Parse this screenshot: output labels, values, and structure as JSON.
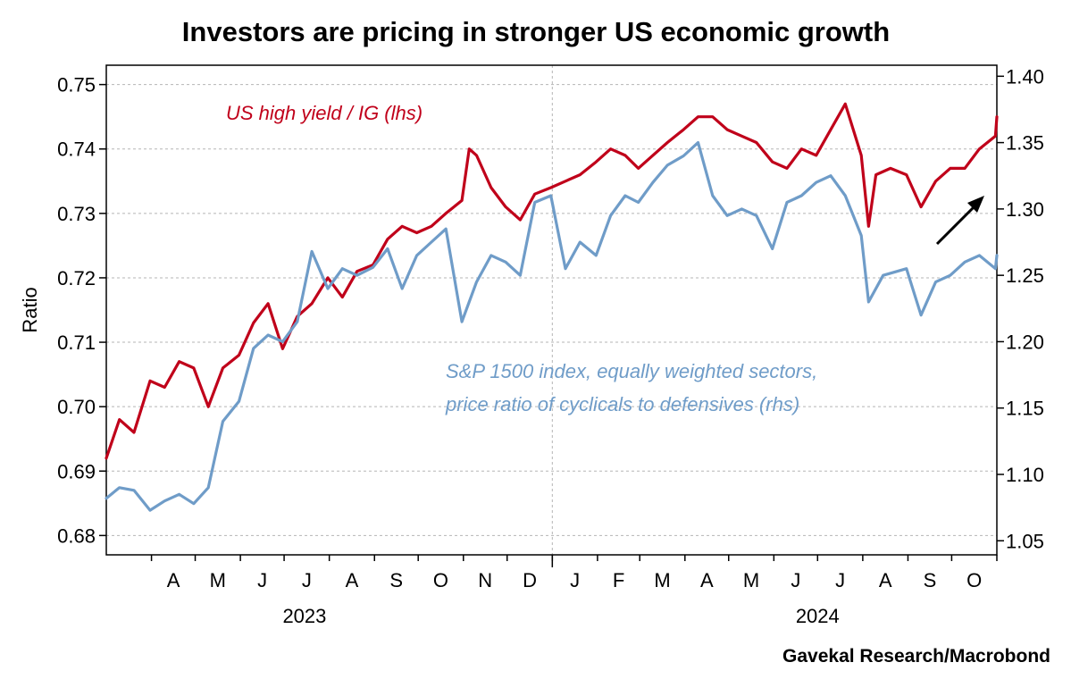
{
  "chart_data": {
    "type": "line",
    "title": "Investors are pricing in stronger US economic growth",
    "ylabel_left": "Ratio",
    "ylabel_right": "",
    "source": "Gavekal Research/Macrobond",
    "x_range": [
      "2023-03-01",
      "2024-11-01"
    ],
    "x_month_labels": [
      "A",
      "M",
      "J",
      "J",
      "A",
      "S",
      "O",
      "N",
      "D",
      "J",
      "F",
      "M",
      "A",
      "M",
      "J",
      "J",
      "A",
      "S",
      "O"
    ],
    "x_year_labels": [
      "2023",
      "2024"
    ],
    "left_axis": {
      "ylim": [
        0.677,
        0.753
      ],
      "ticks": [
        "0.68",
        "0.69",
        "0.70",
        "0.71",
        "0.72",
        "0.73",
        "0.74",
        "0.75"
      ]
    },
    "right_axis": {
      "ylim": [
        1.0394,
        1.4083
      ],
      "ticks": [
        "1.05",
        "1.10",
        "1.15",
        "1.20",
        "1.25",
        "1.30",
        "1.35",
        "1.40"
      ]
    },
    "grid": true,
    "series": [
      {
        "name": "US high yield / IG (lhs)",
        "axis": "left",
        "color": "#c0001a",
        "points": [
          [
            "2023-03-01",
            0.692
          ],
          [
            "2023-03-10",
            0.698
          ],
          [
            "2023-03-20",
            0.696
          ],
          [
            "2023-03-31",
            0.704
          ],
          [
            "2023-04-10",
            0.703
          ],
          [
            "2023-04-20",
            0.707
          ],
          [
            "2023-04-30",
            0.706
          ],
          [
            "2023-05-10",
            0.7
          ],
          [
            "2023-05-20",
            0.706
          ],
          [
            "2023-05-31",
            0.708
          ],
          [
            "2023-06-10",
            0.713
          ],
          [
            "2023-06-20",
            0.716
          ],
          [
            "2023-06-30",
            0.709
          ],
          [
            "2023-07-10",
            0.714
          ],
          [
            "2023-07-20",
            0.716
          ],
          [
            "2023-07-31",
            0.72
          ],
          [
            "2023-08-10",
            0.717
          ],
          [
            "2023-08-20",
            0.721
          ],
          [
            "2023-08-31",
            0.722
          ],
          [
            "2023-09-10",
            0.726
          ],
          [
            "2023-09-20",
            0.728
          ],
          [
            "2023-09-30",
            0.727
          ],
          [
            "2023-10-10",
            0.728
          ],
          [
            "2023-10-20",
            0.73
          ],
          [
            "2023-10-31",
            0.732
          ],
          [
            "2023-11-05",
            0.74
          ],
          [
            "2023-11-10",
            0.739
          ],
          [
            "2023-11-20",
            0.734
          ],
          [
            "2023-11-30",
            0.731
          ],
          [
            "2023-12-10",
            0.729
          ],
          [
            "2023-12-20",
            0.733
          ],
          [
            "2023-12-31",
            0.734
          ],
          [
            "2024-01-10",
            0.735
          ],
          [
            "2024-01-20",
            0.736
          ],
          [
            "2024-01-31",
            0.738
          ],
          [
            "2024-02-10",
            0.74
          ],
          [
            "2024-02-20",
            0.739
          ],
          [
            "2024-02-29",
            0.737
          ],
          [
            "2024-03-10",
            0.739
          ],
          [
            "2024-03-20",
            0.741
          ],
          [
            "2024-03-31",
            0.743
          ],
          [
            "2024-04-10",
            0.745
          ],
          [
            "2024-04-20",
            0.745
          ],
          [
            "2024-04-30",
            0.743
          ],
          [
            "2024-05-10",
            0.742
          ],
          [
            "2024-05-20",
            0.741
          ],
          [
            "2024-05-31",
            0.738
          ],
          [
            "2024-06-10",
            0.737
          ],
          [
            "2024-06-20",
            0.74
          ],
          [
            "2024-06-30",
            0.739
          ],
          [
            "2024-07-10",
            0.743
          ],
          [
            "2024-07-20",
            0.747
          ],
          [
            "2024-07-31",
            0.739
          ],
          [
            "2024-08-05",
            0.728
          ],
          [
            "2024-08-10",
            0.736
          ],
          [
            "2024-08-20",
            0.737
          ],
          [
            "2024-08-31",
            0.736
          ],
          [
            "2024-09-10",
            0.731
          ],
          [
            "2024-09-20",
            0.735
          ],
          [
            "2024-09-30",
            0.737
          ],
          [
            "2024-10-10",
            0.737
          ],
          [
            "2024-10-20",
            0.74
          ],
          [
            "2024-10-31",
            0.742
          ],
          [
            "2024-11-01",
            0.745
          ]
        ]
      },
      {
        "name": "S&P 1500 index, equally weighted sectors, price ratio of cyclicals to defensives (rhs)",
        "axis": "right",
        "color": "#6f9cc8",
        "points": [
          [
            "2023-03-01",
            1.082
          ],
          [
            "2023-03-10",
            1.09
          ],
          [
            "2023-03-20",
            1.088
          ],
          [
            "2023-03-31",
            1.073
          ],
          [
            "2023-04-10",
            1.08
          ],
          [
            "2023-04-20",
            1.085
          ],
          [
            "2023-04-30",
            1.078
          ],
          [
            "2023-05-10",
            1.09
          ],
          [
            "2023-05-20",
            1.14
          ],
          [
            "2023-05-31",
            1.155
          ],
          [
            "2023-06-10",
            1.195
          ],
          [
            "2023-06-20",
            1.205
          ],
          [
            "2023-06-30",
            1.2
          ],
          [
            "2023-07-10",
            1.215
          ],
          [
            "2023-07-20",
            1.268
          ],
          [
            "2023-07-31",
            1.24
          ],
          [
            "2023-08-10",
            1.255
          ],
          [
            "2023-08-20",
            1.25
          ],
          [
            "2023-08-31",
            1.256
          ],
          [
            "2023-09-10",
            1.27
          ],
          [
            "2023-09-20",
            1.24
          ],
          [
            "2023-09-30",
            1.265
          ],
          [
            "2023-10-10",
            1.275
          ],
          [
            "2023-10-20",
            1.285
          ],
          [
            "2023-10-31",
            1.215
          ],
          [
            "2023-11-10",
            1.245
          ],
          [
            "2023-11-20",
            1.265
          ],
          [
            "2023-11-30",
            1.26
          ],
          [
            "2023-12-10",
            1.25
          ],
          [
            "2023-12-20",
            1.305
          ],
          [
            "2023-12-31",
            1.31
          ],
          [
            "2024-01-10",
            1.255
          ],
          [
            "2024-01-20",
            1.275
          ],
          [
            "2024-01-31",
            1.265
          ],
          [
            "2024-02-10",
            1.295
          ],
          [
            "2024-02-20",
            1.31
          ],
          [
            "2024-02-29",
            1.305
          ],
          [
            "2024-03-10",
            1.32
          ],
          [
            "2024-03-20",
            1.333
          ],
          [
            "2024-03-31",
            1.34
          ],
          [
            "2024-04-10",
            1.35
          ],
          [
            "2024-04-20",
            1.31
          ],
          [
            "2024-04-30",
            1.295
          ],
          [
            "2024-05-10",
            1.3
          ],
          [
            "2024-05-20",
            1.295
          ],
          [
            "2024-05-31",
            1.27
          ],
          [
            "2024-06-10",
            1.305
          ],
          [
            "2024-06-20",
            1.31
          ],
          [
            "2024-06-30",
            1.32
          ],
          [
            "2024-07-10",
            1.325
          ],
          [
            "2024-07-20",
            1.31
          ],
          [
            "2024-07-31",
            1.28
          ],
          [
            "2024-08-05",
            1.23
          ],
          [
            "2024-08-15",
            1.25
          ],
          [
            "2024-08-31",
            1.255
          ],
          [
            "2024-09-10",
            1.22
          ],
          [
            "2024-09-20",
            1.245
          ],
          [
            "2024-09-30",
            1.25
          ],
          [
            "2024-10-10",
            1.26
          ],
          [
            "2024-10-20",
            1.265
          ],
          [
            "2024-10-31",
            1.255
          ],
          [
            "2024-11-01",
            1.265
          ]
        ]
      }
    ],
    "annotations": {
      "red_label": "US high yield / IG (lhs)",
      "blue_label_line1": "S&P 1500 index, equally weighted sectors,",
      "blue_label_line2": "price ratio of cyclicals to defensives (rhs)"
    }
  }
}
